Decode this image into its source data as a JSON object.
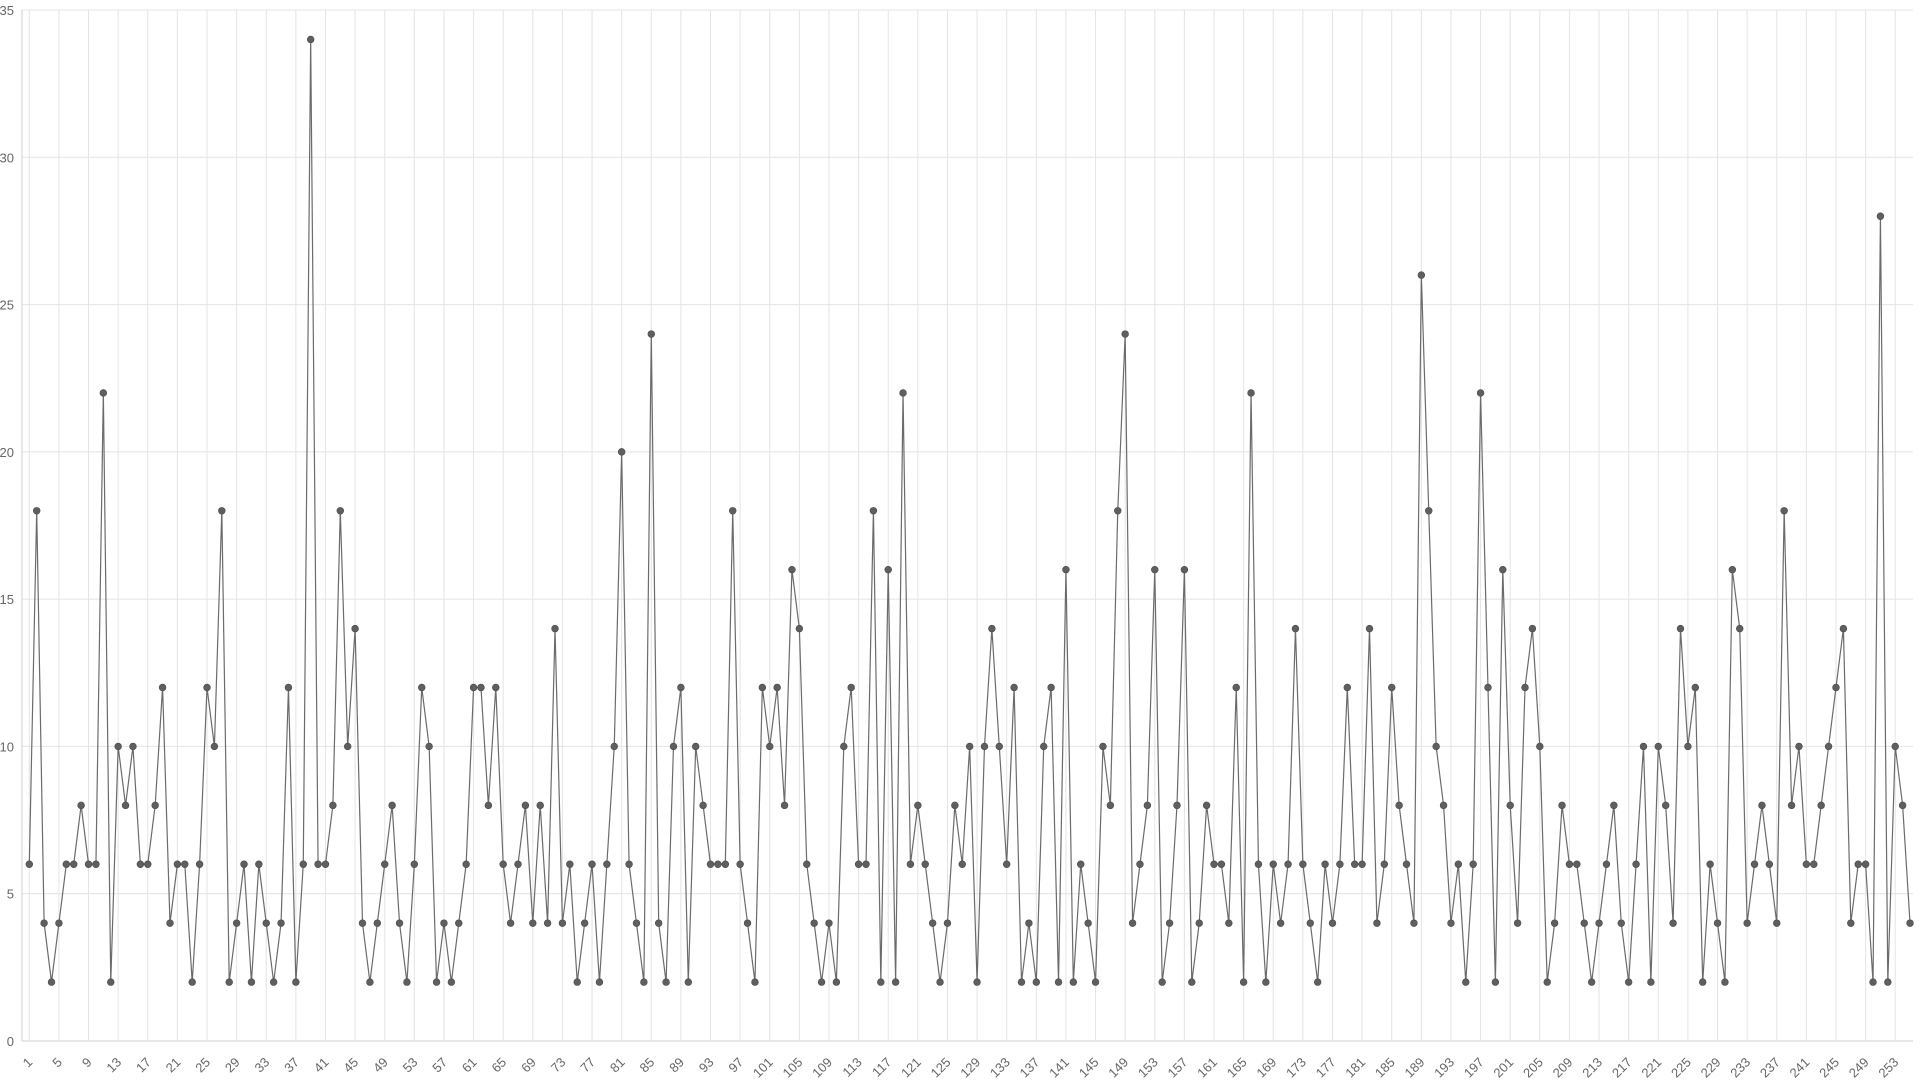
{
  "chart_data": {
    "type": "line",
    "title": "",
    "xlabel": "",
    "ylabel": "",
    "ylim": [
      0,
      35
    ],
    "yticks": [
      0,
      5,
      10,
      15,
      20,
      25,
      30,
      35
    ],
    "x_start": 1,
    "x_end": 255,
    "x_tick_step": 4,
    "grid": true,
    "legend": "none",
    "series_color": "#6b6b6b",
    "series": [
      {
        "values": [
          6,
          18,
          4,
          2,
          4,
          6,
          6,
          8,
          6,
          6,
          22,
          2,
          10,
          8,
          10,
          6,
          6,
          8,
          12,
          4,
          6,
          6,
          2,
          6,
          12,
          10,
          18,
          2,
          4,
          6,
          2,
          6,
          4,
          2,
          4,
          12,
          2,
          6,
          34,
          6,
          6,
          8,
          18,
          10,
          14,
          4,
          2,
          4,
          6,
          8,
          4,
          2,
          6,
          12,
          10,
          2,
          4,
          2,
          4,
          6,
          12,
          12,
          8,
          12,
          6,
          4,
          6,
          8,
          4,
          8,
          4,
          14,
          4,
          6,
          2,
          4,
          6,
          2,
          6,
          10,
          20,
          6,
          4,
          2,
          24,
          4,
          2,
          10,
          12,
          2,
          10,
          8,
          6,
          6,
          6,
          18,
          6,
          4,
          2,
          12,
          10,
          12,
          8,
          16,
          14,
          6,
          4,
          2,
          4,
          2,
          10,
          12,
          6,
          6,
          18,
          2,
          16,
          2,
          22,
          6,
          8,
          6,
          4,
          2,
          4,
          8,
          6,
          10,
          2,
          10,
          14,
          10,
          6,
          12,
          2,
          4,
          2,
          10,
          12,
          2,
          16,
          2,
          6,
          4,
          2,
          10,
          8,
          18,
          24,
          4,
          6,
          8,
          16,
          2,
          4,
          8,
          16,
          2,
          4,
          8,
          6,
          6,
          4,
          12,
          2,
          22,
          6,
          2,
          6,
          4,
          6,
          14,
          6,
          4,
          2,
          6,
          4,
          6,
          12,
          6,
          6,
          14,
          4,
          6,
          12,
          8,
          6,
          4,
          26,
          18,
          10,
          8,
          4,
          6,
          2,
          6,
          22,
          12,
          2,
          16,
          8,
          4,
          12,
          14,
          10,
          2,
          4,
          8,
          6,
          6,
          4,
          2,
          4,
          6,
          8,
          4,
          2,
          6,
          10,
          2,
          10,
          8,
          4,
          14,
          10,
          12,
          2,
          6,
          4,
          2,
          16,
          14,
          4,
          6,
          8,
          6,
          4,
          18,
          8,
          10,
          6,
          6,
          8,
          10,
          12,
          14,
          4,
          6,
          6,
          2,
          28,
          2,
          10,
          8,
          4
        ]
      }
    ]
  }
}
